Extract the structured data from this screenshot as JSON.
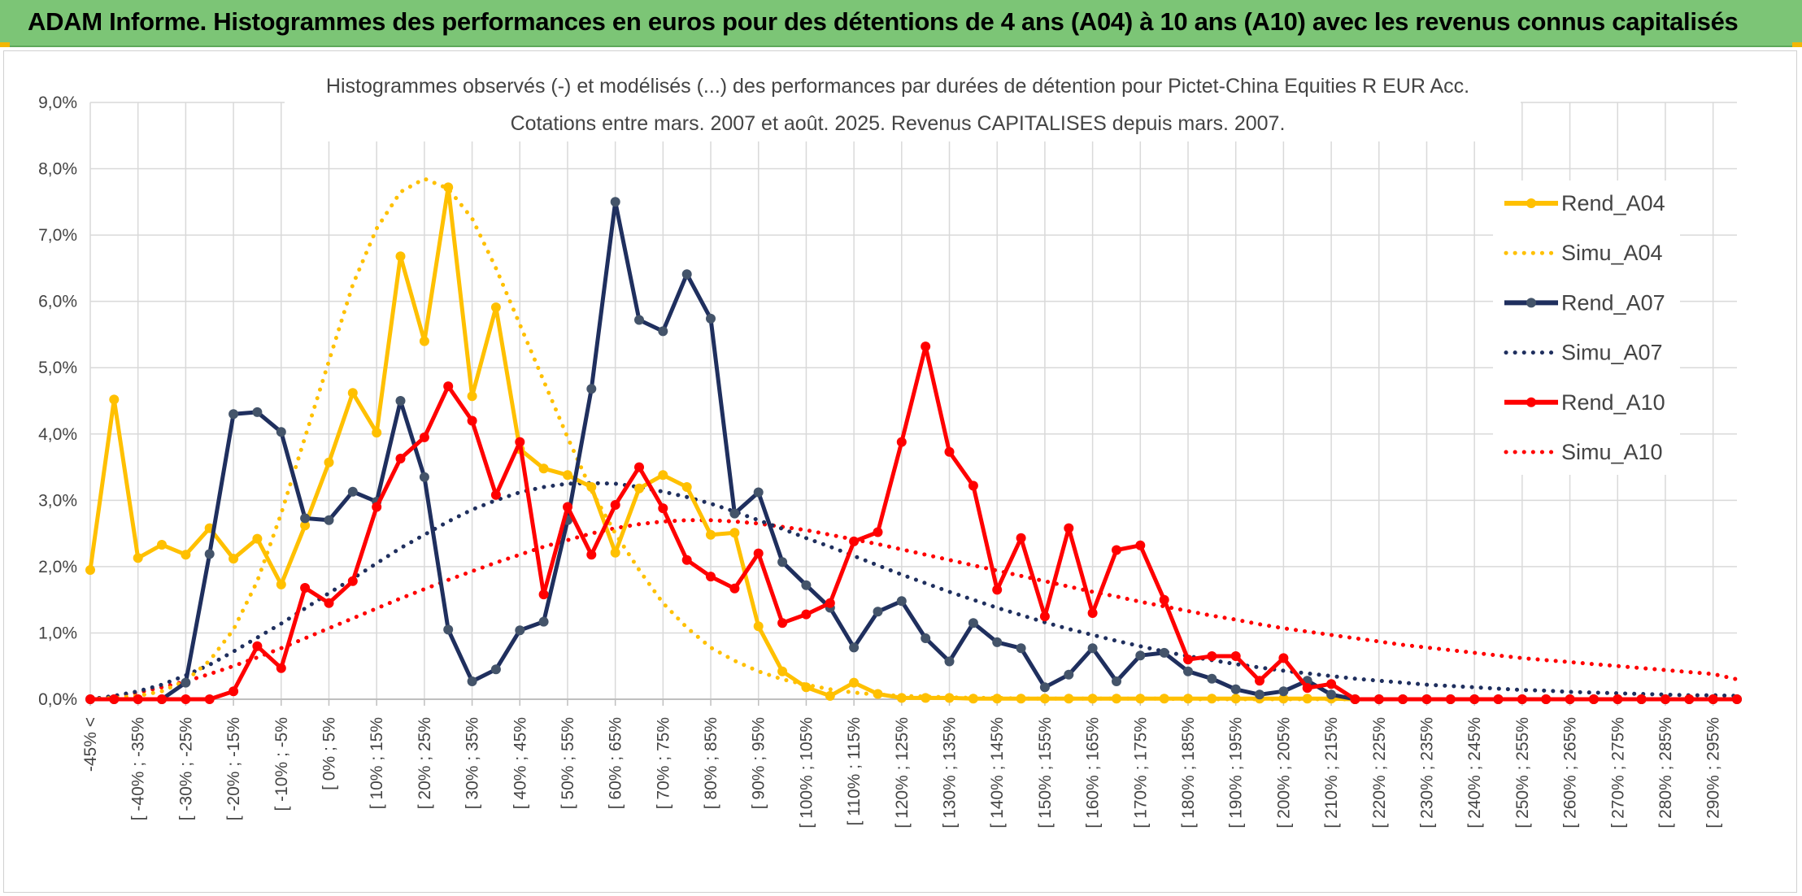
{
  "banner": {
    "title": "ADAM Informe. Histogrammes des performances en euros pour des détentions de 4 ans (A04) à 10 ans (A10) avec les revenus connus capitalisés"
  },
  "colors": {
    "banner_bg": "#7cc576",
    "A04": "#ffc000",
    "A07": "#1f2f5e",
    "A07_markers": "#44546a",
    "A10": "#ff0000",
    "grid": "#d9d9d9"
  },
  "chart_data": {
    "type": "line",
    "title": "Histogrammes observés (-) et modélisés (...) des performances par durées de détention pour Pictet-China Equities R EUR Acc.",
    "subtitle": "Cotations entre mars. 2007 et août. 2025. Revenus CAPITALISES depuis mars. 2007.",
    "xlabel": "",
    "ylabel": "",
    "ylim": [
      0,
      9
    ],
    "yticks": [
      "0,0%",
      "1,0%",
      "2,0%",
      "3,0%",
      "4,0%",
      "5,0%",
      "6,0%",
      "7,0%",
      "8,0%",
      "9,0%"
    ],
    "grid": true,
    "legend_position": "right",
    "categories": [
      "-45% <",
      "[ -45% ; -40%",
      "[ -40% ; -35%",
      "[ -35% ; -30%",
      "[ -30% ; -25%",
      "[ -25% ; -20%",
      "[ -20% ; -15%",
      "[ -15% ; -10%",
      "[ -10% ; -5%",
      "[ -5% ; 0%",
      "[ 0% ; 5%",
      "[ 5% ; 10%",
      "[ 10% ; 15%",
      "[ 15% ; 20%",
      "[ 20% ; 25%",
      "[ 25% ; 30%",
      "[ 30% ; 35%",
      "[ 35% ; 40%",
      "[ 40% ; 45%",
      "[ 45% ; 50%",
      "[ 50% ; 55%",
      "[ 55% ; 60%",
      "[ 60% ; 65%",
      "[ 65% ; 70%",
      "[ 70% ; 75%",
      "[ 75% ; 80%",
      "[ 80% ; 85%",
      "[ 85% ; 90%",
      "[ 90% ; 95%",
      "[ 95% ; 100%",
      "[ 100% ; 105%",
      "[ 105% ; 110%",
      "[ 110% ; 115%",
      "[ 115% ; 120%",
      "[ 120% ; 125%",
      "[ 125% ; 130%",
      "[ 130% ; 135%",
      "[ 135% ; 140%",
      "[ 140% ; 145%",
      "[ 145% ; 150%",
      "[ 150% ; 155%",
      "[ 155% ; 160%",
      "[ 160% ; 165%",
      "[ 165% ; 170%",
      "[ 170% ; 175%",
      "[ 175% ; 180%",
      "[ 180% ; 185%",
      "[ 185% ; 190%",
      "[ 190% ; 195%",
      "[ 195% ; 200%",
      "[ 200% ; 205%",
      "[ 205% ; 210%",
      "[ 210% ; 215%",
      "[ 215% ; 220%",
      "[ 220% ; 225%",
      "[ 225% ; 230%",
      "[ 230% ; 235%",
      "[ 235% ; 240%",
      "[ 240% ; 245%",
      "[ 245% ; 250%",
      "[ 250% ; 255%",
      "[ 255% ; 260%",
      "[ 260% ; 265%",
      "[ 265% ; 270%",
      "[ 270% ; 275%",
      "[ 275% ; 280%",
      "[ 280% ; 285%",
      "[ 285% ; 290%",
      "[ 290% ; 295%",
      "[ 295% ; 300%"
    ],
    "shown_tick_labels": [
      "-45% <",
      "[ -40% ; -35%",
      "[ -30% ; -25%",
      "[ -20% ; -15%",
      "[ -10% ; -5%",
      "[ 0% ; 5%",
      "[ 10% ; 15%",
      "[ 20% ; 25%",
      "[ 30% ; 35%",
      "[ 40% ; 45%",
      "[ 50% ; 55%",
      "[ 60% ; 65%",
      "[ 70% ; 75%",
      "[ 80% ; 85%",
      "[ 90% ; 95%",
      "[ 100% ; 105%",
      "[ 110% ; 115%",
      "[ 120% ; 125%",
      "[ 130% ; 135%",
      "[ 140% ; 145%",
      "[ 150% ; 155%",
      "[ 160% ; 165%",
      "[ 170% ; 175%",
      "[ 180% ; 185%",
      "[ 190% ; 195%",
      "[ 200% ; 205%",
      "[ 210% ; 215%",
      "[ 220% ; 225%",
      "[ 230% ; 235%",
      "[ 240% ; 245%",
      "[ 250% ; 255%",
      "[ 260% ; 265%",
      "[ 270% ; 275%",
      "[ 280% ; 285%",
      "[ 290% ; 295%"
    ],
    "series": [
      {
        "name": "Rend_A04",
        "style": "solid-markers",
        "color": "#ffc000",
        "values": [
          1.95,
          4.52,
          2.13,
          2.33,
          2.18,
          2.58,
          2.12,
          2.42,
          1.73,
          2.62,
          3.57,
          4.62,
          4.02,
          6.68,
          5.4,
          7.72,
          4.57,
          5.91,
          3.77,
          3.48,
          3.38,
          3.2,
          2.21,
          3.18,
          3.38,
          3.2,
          2.48,
          2.51,
          1.1,
          0.42,
          0.18,
          0.05,
          0.25,
          0.08,
          0.02,
          0.02,
          0.02,
          0.01,
          0.01,
          0.01,
          0.01,
          0.01,
          0.01,
          0.01,
          0.01,
          0.01,
          0.01,
          0.01,
          0.01,
          0.01,
          0.01,
          0.01,
          0.01,
          0.0,
          0.0,
          0.0,
          0.0,
          0.0,
          0.0,
          0.0,
          0.0,
          0.0,
          0.0,
          0.0,
          0.0,
          0.0,
          0.0,
          0.0,
          0.0,
          0.0
        ]
      },
      {
        "name": "Simu_A04",
        "style": "dotted",
        "color": "#ffc000",
        "values": [
          0.0,
          0.02,
          0.05,
          0.12,
          0.28,
          0.58,
          1.05,
          1.78,
          2.8,
          3.95,
          5.1,
          6.25,
          7.1,
          7.65,
          7.85,
          7.7,
          7.25,
          6.5,
          5.65,
          4.8,
          3.95,
          3.15,
          2.5,
          1.95,
          1.45,
          1.08,
          0.78,
          0.58,
          0.42,
          0.3,
          0.22,
          0.15,
          0.1,
          0.07,
          0.05,
          0.04,
          0.03,
          0.02,
          0.02,
          0.01,
          0.01,
          0.01,
          0.01,
          0.01,
          0.01,
          0.01,
          0.0,
          0.0,
          0.0,
          0.0,
          0.0,
          0.0,
          0.0,
          0.0,
          0.0,
          0.0,
          0.0,
          0.0,
          0.0,
          0.0,
          0.0,
          0.0,
          0.0,
          0.0,
          0.0,
          0.0,
          0.0,
          0.0,
          0.0,
          0.0
        ]
      },
      {
        "name": "Rend_A07",
        "style": "solid-markers",
        "color": "#1f2f5e",
        "values": [
          0.0,
          0.0,
          0.0,
          0.0,
          0.25,
          2.19,
          4.3,
          4.33,
          4.03,
          2.73,
          2.7,
          3.13,
          2.98,
          4.5,
          3.35,
          1.05,
          0.27,
          0.45,
          1.04,
          1.17,
          2.7,
          4.68,
          7.5,
          5.72,
          5.55,
          6.41,
          5.74,
          2.8,
          3.12,
          2.07,
          1.72,
          1.38,
          0.78,
          1.32,
          1.48,
          0.92,
          0.57,
          1.15,
          0.86,
          0.77,
          0.18,
          0.37,
          0.77,
          0.27,
          0.66,
          0.7,
          0.42,
          0.31,
          0.15,
          0.07,
          0.12,
          0.28,
          0.07,
          0.0,
          0.0,
          0.0,
          0.0,
          0.0,
          0.0,
          0.0,
          0.0,
          0.0,
          0.0,
          0.0,
          0.0,
          0.0,
          0.0,
          0.0,
          0.0,
          0.0
        ]
      },
      {
        "name": "Simu_A07",
        "style": "dotted",
        "color": "#1f2f5e",
        "values": [
          0.0,
          0.05,
          0.12,
          0.22,
          0.36,
          0.52,
          0.72,
          0.93,
          1.14,
          1.37,
          1.6,
          1.82,
          2.05,
          2.28,
          2.48,
          2.68,
          2.86,
          3.0,
          3.12,
          3.2,
          3.25,
          3.26,
          3.25,
          3.2,
          3.13,
          3.05,
          2.95,
          2.83,
          2.7,
          2.57,
          2.43,
          2.3,
          2.16,
          2.02,
          1.88,
          1.75,
          1.62,
          1.5,
          1.38,
          1.27,
          1.16,
          1.06,
          0.97,
          0.88,
          0.8,
          0.72,
          0.65,
          0.59,
          0.53,
          0.48,
          0.43,
          0.39,
          0.35,
          0.31,
          0.28,
          0.25,
          0.22,
          0.2,
          0.18,
          0.16,
          0.14,
          0.13,
          0.11,
          0.1,
          0.09,
          0.08,
          0.07,
          0.06,
          0.06,
          0.05
        ]
      },
      {
        "name": "Rend_A10",
        "style": "solid-markers",
        "color": "#ff0000",
        "values": [
          0.0,
          0.0,
          0.0,
          0.0,
          0.0,
          0.0,
          0.12,
          0.8,
          0.47,
          1.68,
          1.45,
          1.78,
          2.9,
          3.63,
          3.95,
          4.72,
          4.2,
          3.08,
          3.88,
          1.58,
          2.9,
          2.18,
          2.93,
          3.5,
          2.88,
          2.1,
          1.85,
          1.67,
          2.2,
          1.15,
          1.28,
          1.45,
          2.38,
          2.52,
          3.88,
          5.32,
          3.73,
          3.22,
          1.65,
          2.43,
          1.25,
          2.58,
          1.3,
          2.25,
          2.32,
          1.5,
          0.6,
          0.65,
          0.65,
          0.28,
          0.62,
          0.17,
          0.23,
          0.0,
          0.0,
          0.0,
          0.0,
          0.0,
          0.0,
          0.0,
          0.0,
          0.0,
          0.0,
          0.0,
          0.0,
          0.0,
          0.0,
          0.0,
          0.0,
          0.0
        ]
      },
      {
        "name": "Simu_A10",
        "style": "dotted",
        "color": "#ff0000",
        "values": [
          0.0,
          0.05,
          0.1,
          0.18,
          0.27,
          0.38,
          0.5,
          0.63,
          0.77,
          0.92,
          1.07,
          1.22,
          1.37,
          1.52,
          1.66,
          1.8,
          1.93,
          2.06,
          2.18,
          2.3,
          2.4,
          2.5,
          2.58,
          2.64,
          2.68,
          2.7,
          2.7,
          2.68,
          2.65,
          2.6,
          2.55,
          2.48,
          2.41,
          2.34,
          2.26,
          2.18,
          2.1,
          2.02,
          1.94,
          1.86,
          1.78,
          1.7,
          1.62,
          1.55,
          1.47,
          1.4,
          1.33,
          1.26,
          1.2,
          1.13,
          1.07,
          1.02,
          0.97,
          0.92,
          0.87,
          0.82,
          0.78,
          0.74,
          0.7,
          0.66,
          0.62,
          0.59,
          0.56,
          0.53,
          0.5,
          0.47,
          0.44,
          0.41,
          0.38,
          0.3
        ]
      }
    ]
  }
}
